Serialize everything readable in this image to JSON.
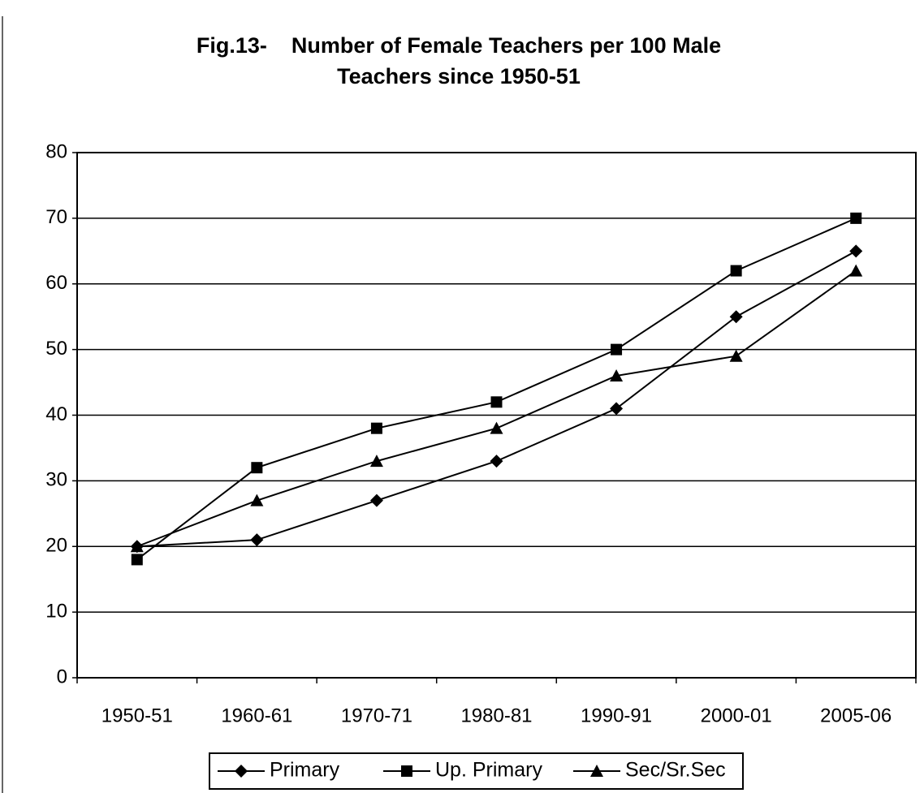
{
  "chart_data": {
    "type": "line",
    "title": [
      "Fig.13-    Number of Female Teachers per 100 Male",
      "Teachers since 1950-51"
    ],
    "categories": [
      "1950-51",
      "1960-61",
      "1970-71",
      "1980-81",
      "1990-91",
      "2000-01",
      "2005-06"
    ],
    "series": [
      {
        "name": "Primary",
        "color": "#000000",
        "marker": "diamond",
        "values": [
          20,
          21,
          27,
          33,
          41,
          55,
          65
        ]
      },
      {
        "name": "Up. Primary",
        "color": "#000000",
        "marker": "square",
        "values": [
          18,
          32,
          38,
          42,
          50,
          62,
          70
        ]
      },
      {
        "name": "Sec/Sr.Sec",
        "color": "#000000",
        "marker": "triangle",
        "values": [
          20,
          27,
          33,
          38,
          46,
          49,
          62
        ]
      }
    ],
    "ylim": [
      0,
      80
    ],
    "yticks": [
      0,
      10,
      20,
      30,
      40,
      50,
      60,
      70,
      80
    ],
    "grid": true,
    "legend": "bottom"
  }
}
